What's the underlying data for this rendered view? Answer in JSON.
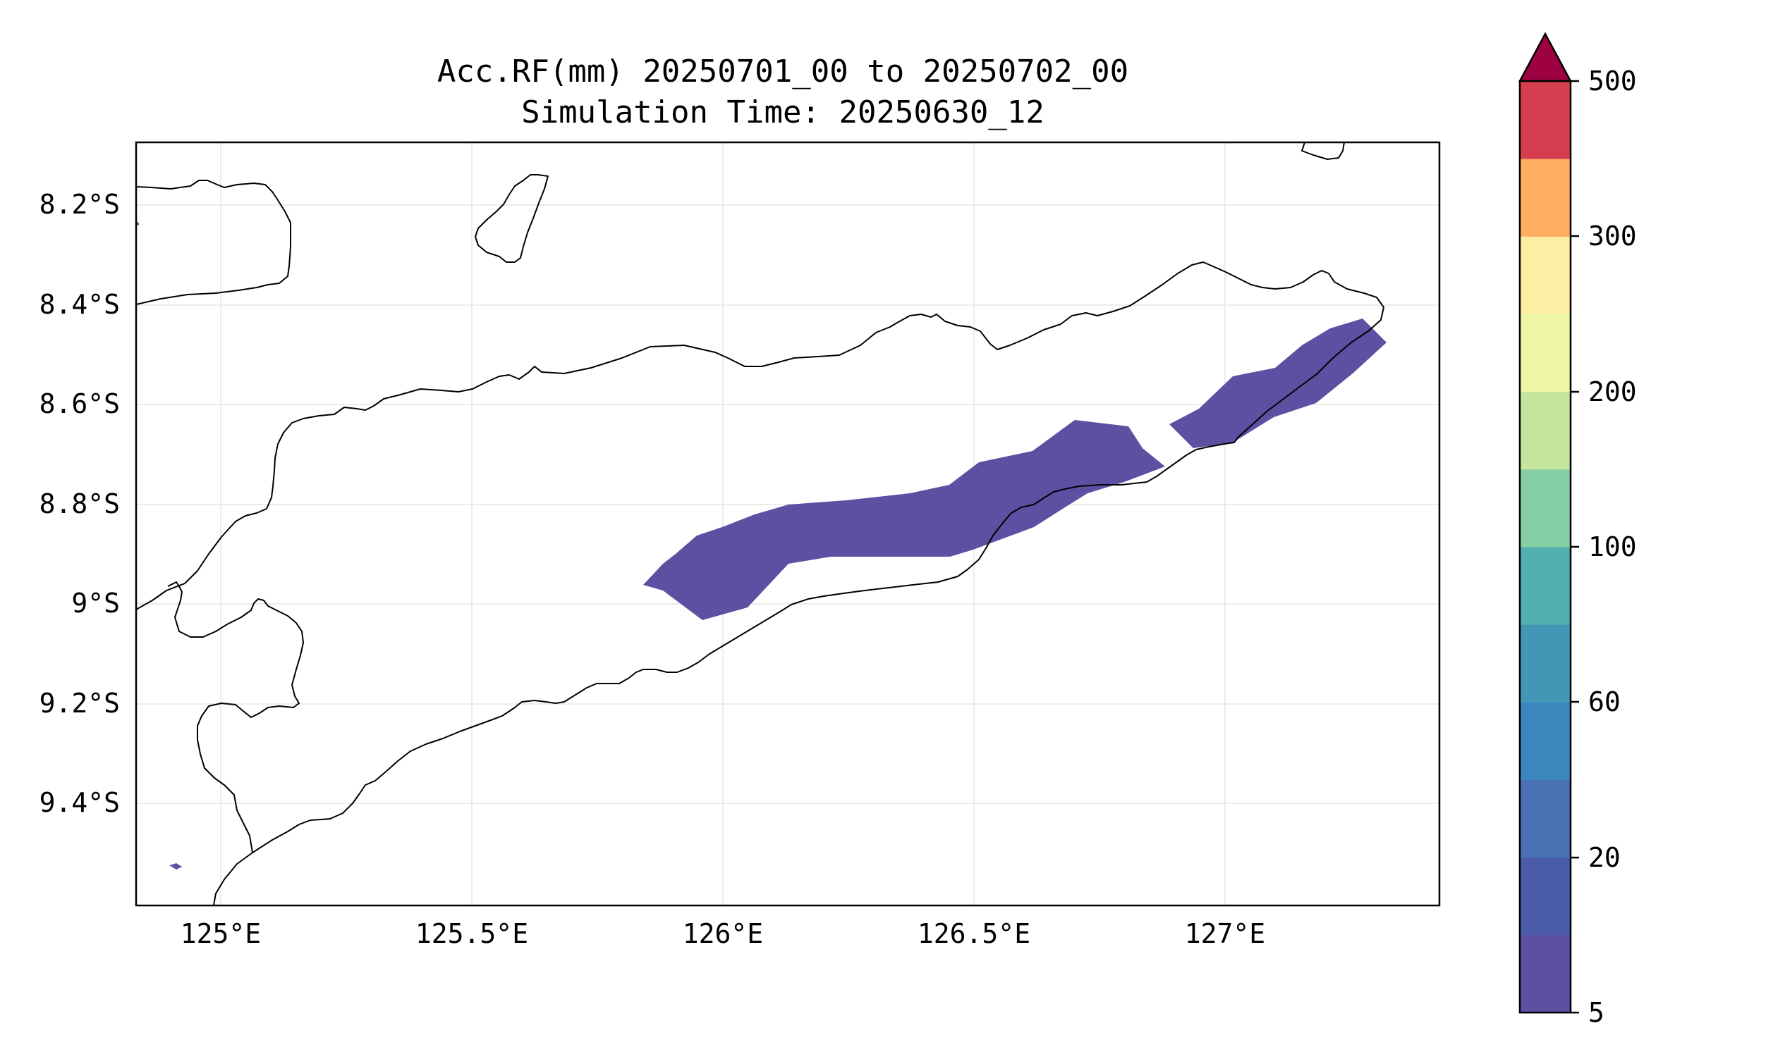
{
  "title_line1": "Acc.RF(mm) 20250701_00 to 20250702_00",
  "title_line2": "Simulation Time: 20250630_12",
  "x_ticks": [
    "125°E",
    "125.5°E",
    "126°E",
    "126.5°E",
    "127°E"
  ],
  "y_ticks": [
    "8.2°S",
    "8.4°S",
    "8.6°S",
    "8.8°S",
    "9°S",
    "9.2°S",
    "9.4°S"
  ],
  "colorbar": {
    "tick_labels": [
      "500",
      "300",
      "200",
      "100",
      "60",
      "20",
      "5"
    ],
    "colors": [
      "#5e4fa2",
      "#4a5ca8",
      "#4771b2",
      "#3a86bd",
      "#4197b5",
      "#52afaf",
      "#84cfa5",
      "#c5e59c",
      "#ecf6a5",
      "#fdeea4",
      "#fdae61",
      "#d53e4f"
    ],
    "extend_color": "#9e0142"
  },
  "map": {
    "region": "Timor",
    "lon_range": [
      124.82,
      127.42
    ],
    "lat_range": [
      -9.6,
      -8.07
    ],
    "gridlines": true,
    "rain_contour_color": "#5e4fa2"
  }
}
